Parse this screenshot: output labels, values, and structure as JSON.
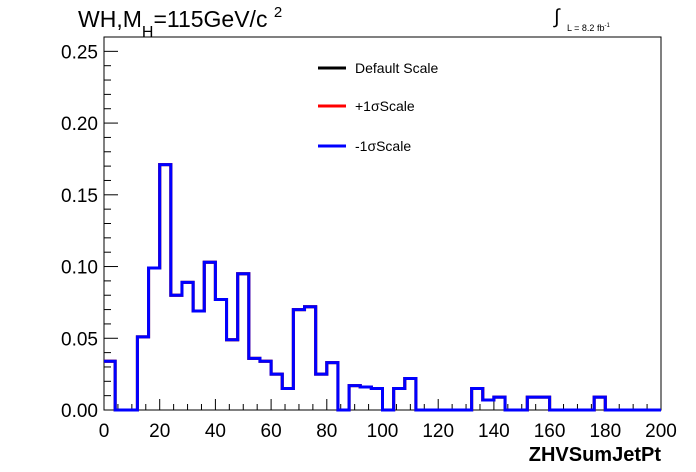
{
  "title": {
    "prefix": "WH,M",
    "subscript": "H",
    "suffix": "=115GeV/c",
    "superscript": "2"
  },
  "lumi": {
    "integral": "∫",
    "text": "L = 8.2 fb",
    "superscript": "-1"
  },
  "chart_data": {
    "type": "line",
    "xlabel": "ZHVSumJetPt",
    "ylabel": "",
    "xlim": [
      0,
      200
    ],
    "ylim": [
      0,
      0.26
    ],
    "x_ticks": [
      "0",
      "20",
      "40",
      "60",
      "80",
      "100",
      "120",
      "140",
      "160",
      "180",
      "200"
    ],
    "y_ticks": [
      "0.00",
      "0.05",
      "0.10",
      "0.15",
      "0.20",
      "0.25"
    ],
    "grid": false,
    "legend_position": "top-center",
    "bin_edges": [
      0,
      4,
      8,
      12,
      16,
      20,
      24,
      28,
      32,
      36,
      40,
      44,
      48,
      52,
      56,
      60,
      64,
      68,
      72,
      76,
      80,
      84,
      88,
      92,
      96,
      100,
      104,
      108,
      112,
      116,
      120,
      124,
      128,
      132,
      136,
      140,
      144,
      148,
      152,
      156,
      160,
      164,
      168,
      172,
      176,
      180,
      184,
      188,
      192,
      196,
      200
    ],
    "series": [
      {
        "name": "Default Scale",
        "color": "#000000",
        "values": [
          0.034,
          0,
          0,
          0.051,
          0.099,
          0.171,
          0.08,
          0.089,
          0.069,
          0.103,
          0.077,
          0.049,
          0.095,
          0.036,
          0.034,
          0.025,
          0.015,
          0.07,
          0.072,
          0.025,
          0.033,
          0,
          0.017,
          0.016,
          0.015,
          0,
          0.015,
          0.022,
          0,
          0,
          0,
          0,
          0,
          0.015,
          0.007,
          0.009,
          0,
          0,
          0.009,
          0.009,
          0,
          0,
          0,
          0,
          0.009,
          0,
          0,
          0,
          0,
          0
        ]
      },
      {
        "name": "+1σScale",
        "color": "#ff0000",
        "values": [
          0.034,
          0,
          0,
          0.051,
          0.099,
          0.171,
          0.08,
          0.089,
          0.069,
          0.103,
          0.077,
          0.049,
          0.095,
          0.036,
          0.034,
          0.025,
          0.015,
          0.07,
          0.072,
          0.025,
          0.033,
          0,
          0.017,
          0.016,
          0.015,
          0,
          0.015,
          0.022,
          0,
          0,
          0,
          0,
          0,
          0.015,
          0.007,
          0.009,
          0,
          0,
          0.009,
          0.009,
          0,
          0,
          0,
          0,
          0.009,
          0,
          0,
          0,
          0,
          0
        ]
      },
      {
        "name": "-1σScale",
        "color": "#0000ff",
        "values": [
          0.034,
          0,
          0,
          0.051,
          0.099,
          0.171,
          0.08,
          0.089,
          0.069,
          0.103,
          0.077,
          0.049,
          0.095,
          0.036,
          0.034,
          0.025,
          0.015,
          0.07,
          0.072,
          0.025,
          0.033,
          0,
          0.017,
          0.016,
          0.015,
          0,
          0.015,
          0.022,
          0,
          0,
          0,
          0,
          0,
          0.015,
          0.007,
          0.009,
          0,
          0,
          0.009,
          0.009,
          0,
          0,
          0,
          0,
          0.009,
          0,
          0,
          0,
          0,
          0
        ]
      }
    ]
  }
}
